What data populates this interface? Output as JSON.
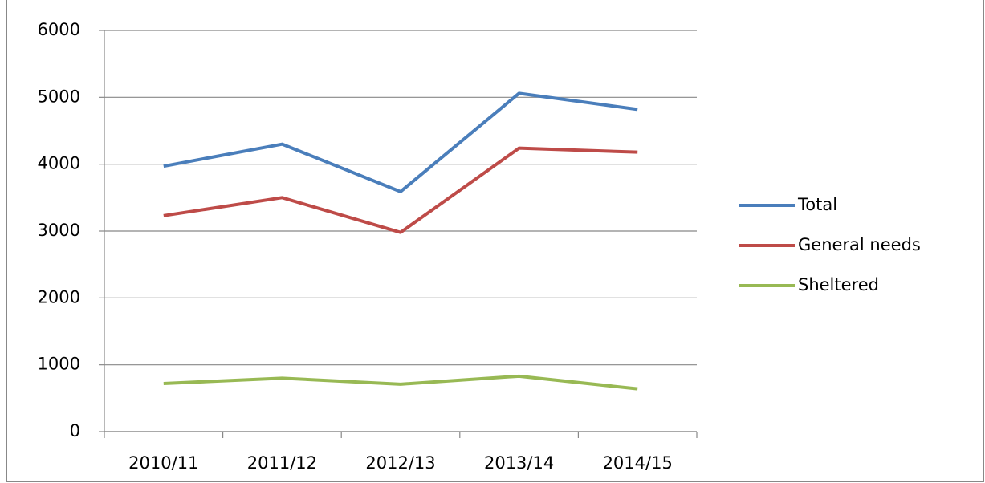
{
  "chart_data": {
    "type": "line",
    "categories": [
      "2010/11",
      "2011/12",
      "2012/13",
      "2013/14",
      "2014/15"
    ],
    "series": [
      {
        "name": "Total",
        "color": "#4a7ebb",
        "values": [
          3970,
          4300,
          3590,
          5060,
          4820
        ]
      },
      {
        "name": "General needs",
        "color": "#be4b48",
        "values": [
          3230,
          3500,
          2980,
          4240,
          4180
        ]
      },
      {
        "name": "Sheltered",
        "color": "#98b954",
        "values": [
          720,
          800,
          710,
          830,
          640
        ]
      }
    ],
    "ylim": [
      0,
      6000
    ],
    "yticks": [
      0,
      1000,
      2000,
      3000,
      4000,
      5000,
      6000
    ],
    "grid": true,
    "legend": "right"
  }
}
